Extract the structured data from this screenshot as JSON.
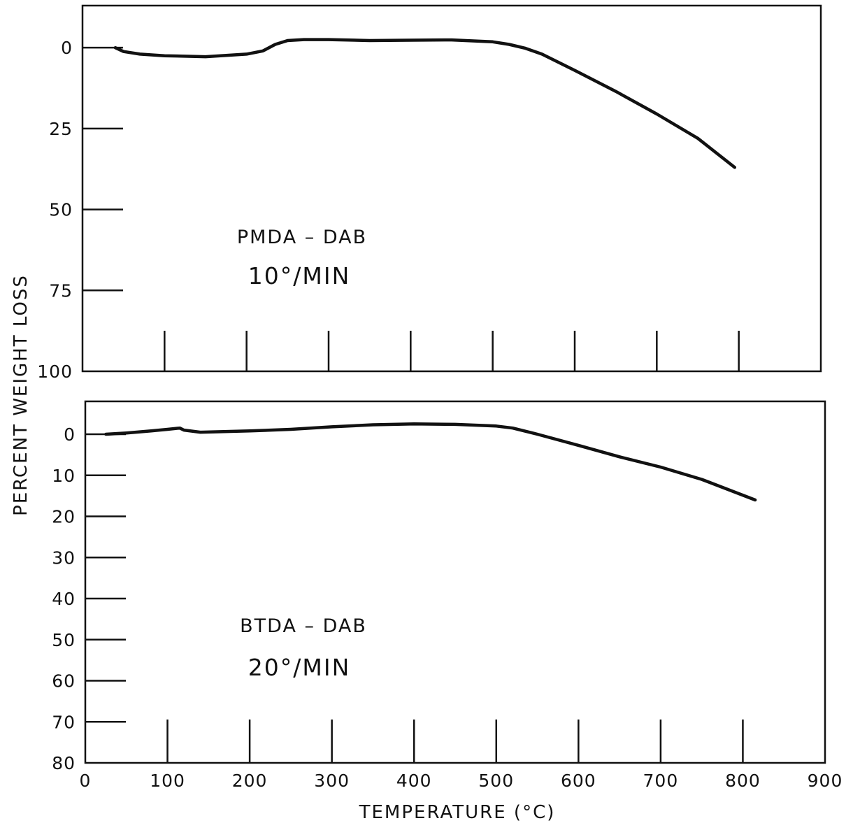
{
  "chart_data": {
    "type": "line",
    "xlabel": "TEMPERATURE (°C)",
    "ylabel": "PERCENT WEIGHT LOSS",
    "x_ticks": [
      "0",
      "100",
      "200",
      "300",
      "400",
      "500",
      "600",
      "700",
      "800",
      "900"
    ],
    "xlim": [
      0,
      900
    ],
    "panels": [
      {
        "id": "top",
        "annotation_name": "PMDA – DAB",
        "annotation_rate": "10°/MIN",
        "ylim": [
          -13,
          100
        ],
        "y_ticks": [
          "0",
          "25",
          "50",
          "75",
          "100"
        ],
        "y_tick_values": [
          0,
          25,
          50,
          75,
          100
        ],
        "series": [
          {
            "x": [
              40,
              50,
              70,
              100,
              150,
              200,
              220,
              235,
              250,
              270,
              300,
              350,
              400,
              450,
              500,
              520,
              540,
              560,
              600,
              650,
              700,
              750,
              795
            ],
            "y": [
              0,
              1.2,
              2,
              2.5,
              2.8,
              2,
              1,
              -1,
              -2.2,
              -2.5,
              -2.5,
              -2.2,
              -2.3,
              -2.4,
              -1.8,
              -1,
              0.2,
              2,
              7,
              13.5,
              20.5,
              28,
              37
            ]
          }
        ]
      },
      {
        "id": "bottom",
        "annotation_name": "BTDA – DAB",
        "annotation_rate": "20°/MIN",
        "ylim": [
          -8,
          80
        ],
        "y_ticks": [
          "0",
          "10",
          "20",
          "30",
          "40",
          "50",
          "60",
          "70",
          "80"
        ],
        "y_tick_values": [
          0,
          10,
          20,
          30,
          40,
          50,
          60,
          70,
          80
        ],
        "series": [
          {
            "x": [
              25,
              50,
              80,
              100,
              115,
              120,
              140,
              200,
              250,
              300,
              350,
              400,
              450,
              500,
              520,
              550,
              600,
              650,
              700,
              750,
              815
            ],
            "y": [
              0,
              -0.3,
              -0.8,
              -1.2,
              -1.5,
              -1,
              -0.5,
              -0.8,
              -1.2,
              -1.8,
              -2.3,
              -2.5,
              -2.4,
              -2.0,
              -1.5,
              0,
              2.7,
              5.5,
              8,
              11,
              16
            ]
          }
        ]
      }
    ]
  }
}
